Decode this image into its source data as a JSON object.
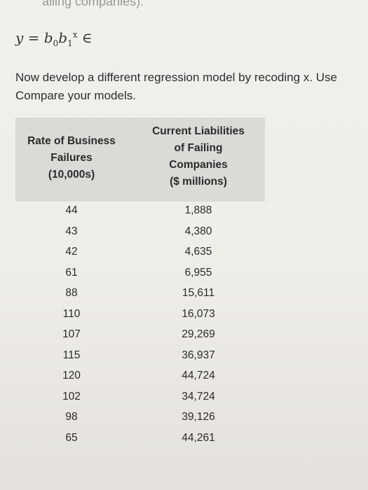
{
  "header": {
    "cut_text": "ailing companies)."
  },
  "formula": {
    "lhs": "y",
    "eq": "=",
    "b0": "b",
    "b0_sub": "0",
    "b1": "b",
    "b1_sub": "1",
    "b1_sup": "x",
    "err": "∈"
  },
  "instructions": {
    "line1": "Now develop a different regression model by recoding x. Use",
    "line2": "Compare your models."
  },
  "table": {
    "col1_header": [
      "Rate of Business",
      "Failures",
      "(10,000s)"
    ],
    "col2_header": [
      "Current Liabilities",
      "of Failing",
      "Companies",
      "($ millions)"
    ],
    "rows": [
      [
        "44",
        "1,888"
      ],
      [
        "43",
        "4,380"
      ],
      [
        "42",
        "4,635"
      ],
      [
        "61",
        "6,955"
      ],
      [
        "88",
        "15,611"
      ],
      [
        "110",
        "16,073"
      ],
      [
        "107",
        "29,269"
      ],
      [
        "115",
        "36,937"
      ],
      [
        "120",
        "44,724"
      ],
      [
        "102",
        "34,724"
      ],
      [
        "98",
        "39,126"
      ],
      [
        "65",
        "44,261"
      ]
    ]
  },
  "colors": {
    "header_bg": "#dcdad6",
    "page_bg": "#efede8"
  }
}
